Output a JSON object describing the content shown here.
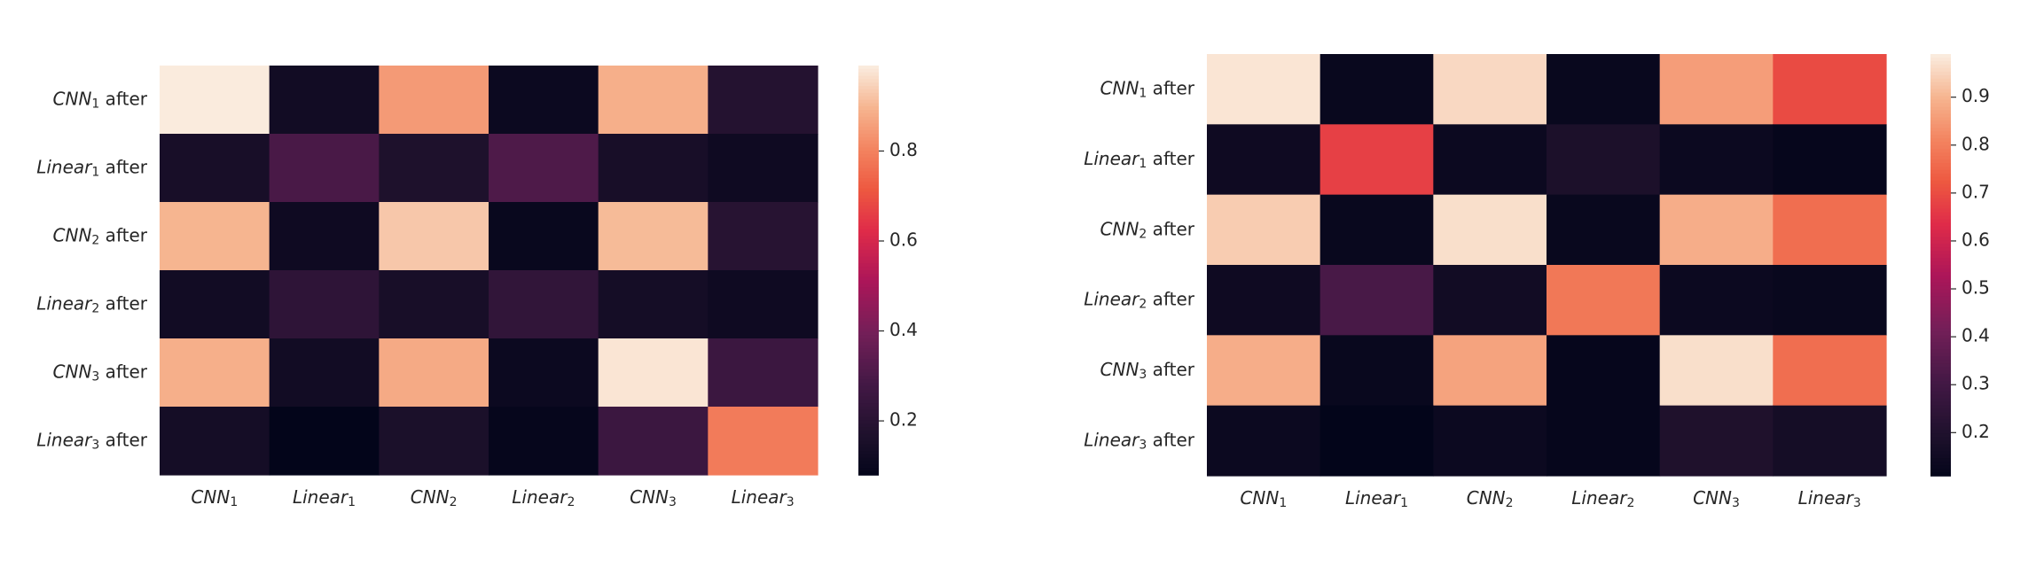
{
  "chart_data": [
    {
      "type": "heatmap",
      "title": "",
      "xlabel": "",
      "ylabel": "",
      "rows": [
        {
          "base": "CNN",
          "sub": "1",
          "suffix": " after"
        },
        {
          "base": "Linear",
          "sub": "1",
          "suffix": " after"
        },
        {
          "base": "CNN",
          "sub": "2",
          "suffix": " after"
        },
        {
          "base": "Linear",
          "sub": "2",
          "suffix": " after"
        },
        {
          "base": "CNN",
          "sub": "3",
          "suffix": " after"
        },
        {
          "base": "Linear",
          "sub": "3",
          "suffix": " after"
        }
      ],
      "columns": [
        {
          "base": "CNN",
          "sub": "1"
        },
        {
          "base": "Linear",
          "sub": "1"
        },
        {
          "base": "CNN",
          "sub": "2"
        },
        {
          "base": "Linear",
          "sub": "2"
        },
        {
          "base": "CNN",
          "sub": "3"
        },
        {
          "base": "Linear",
          "sub": "3"
        }
      ],
      "values": [
        [
          0.99,
          0.13,
          0.85,
          0.11,
          0.89,
          0.19
        ],
        [
          0.15,
          0.3,
          0.17,
          0.31,
          0.15,
          0.12
        ],
        [
          0.9,
          0.12,
          0.93,
          0.1,
          0.91,
          0.2
        ],
        [
          0.13,
          0.22,
          0.15,
          0.23,
          0.14,
          0.12
        ],
        [
          0.89,
          0.13,
          0.88,
          0.11,
          0.98,
          0.26
        ],
        [
          0.14,
          0.08,
          0.16,
          0.09,
          0.26,
          0.79
        ]
      ],
      "vmin": 0.08,
      "vmax": 0.99,
      "colorbar_ticks": [
        0.2,
        0.4,
        0.6,
        0.8
      ],
      "colormap": "rocket"
    },
    {
      "type": "heatmap",
      "title": "",
      "xlabel": "",
      "ylabel": "",
      "rows": [
        {
          "base": "CNN",
          "sub": "1",
          "suffix": " after"
        },
        {
          "base": "Linear",
          "sub": "1",
          "suffix": " after"
        },
        {
          "base": "CNN",
          "sub": "2",
          "suffix": " after"
        },
        {
          "base": "Linear",
          "sub": "2",
          "suffix": " after"
        },
        {
          "base": "CNN",
          "sub": "3",
          "suffix": " after"
        },
        {
          "base": "Linear",
          "sub": "3",
          "suffix": " after"
        }
      ],
      "columns": [
        {
          "base": "CNN",
          "sub": "1"
        },
        {
          "base": "Linear",
          "sub": "1"
        },
        {
          "base": "CNN",
          "sub": "2"
        },
        {
          "base": "Linear",
          "sub": "2"
        },
        {
          "base": "CNN",
          "sub": "3"
        },
        {
          "base": "Linear",
          "sub": "3"
        }
      ],
      "values": [
        [
          0.98,
          0.13,
          0.96,
          0.13,
          0.86,
          0.7
        ],
        [
          0.15,
          0.68,
          0.14,
          0.19,
          0.14,
          0.12
        ],
        [
          0.94,
          0.13,
          0.97,
          0.13,
          0.89,
          0.77
        ],
        [
          0.15,
          0.32,
          0.16,
          0.79,
          0.14,
          0.13
        ],
        [
          0.89,
          0.13,
          0.87,
          0.12,
          0.97,
          0.77
        ],
        [
          0.14,
          0.11,
          0.14,
          0.12,
          0.2,
          0.17
        ]
      ],
      "vmin": 0.11,
      "vmax": 0.99,
      "colorbar_ticks": [
        0.2,
        0.3,
        0.4,
        0.5,
        0.6,
        0.7,
        0.8,
        0.9
      ],
      "colormap": "rocket"
    }
  ]
}
